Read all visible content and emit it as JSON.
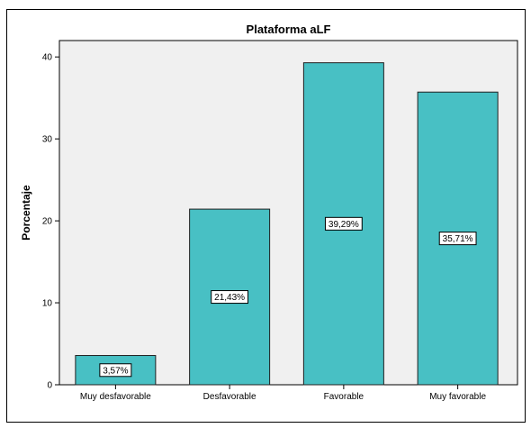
{
  "chart_data": {
    "type": "bar",
    "title": "Plataforma aLF",
    "xlabel": "",
    "ylabel": "Porcentaje",
    "categories": [
      "Muy desfavorable",
      "Desfavorable",
      "Favorable",
      "Muy favorable"
    ],
    "values": [
      3.57,
      21.43,
      39.29,
      35.71
    ],
    "data_labels": [
      "3,57%",
      "21,43%",
      "39,29%",
      "35,71%"
    ],
    "ylim": [
      0,
      42
    ],
    "yticks": [
      0,
      10,
      20,
      30,
      40
    ],
    "grid": false,
    "legend": "none",
    "colors": {
      "bar_fill": "#48C0C4",
      "bar_stroke": "#1f1f1f",
      "plot_background": "#F0F0F0"
    }
  }
}
